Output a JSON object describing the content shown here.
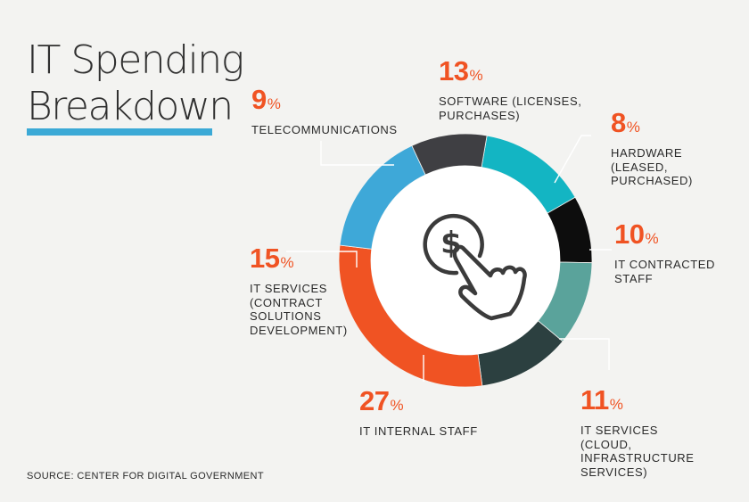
{
  "header": {
    "title_line1": "IT Spending",
    "title_line2": "Breakdown",
    "accent_color": "#3ba9d6"
  },
  "source": "SOURCE: CENTER FOR DIGITAL GOVERNMENT",
  "percent_symbol": "%",
  "center_icon": "hand-pointing-dollar-coin-icon",
  "chart_data": {
    "type": "pie",
    "variant": "donut",
    "title": "IT Spending Breakdown",
    "categories": [
      "SOFTWARE (LICENSES, PURCHASES)",
      "HARDWARE (LEASED, PURCHASED)",
      "IT CONTRACTED STAFF",
      "IT SERVICES (CLOUD, INFRASTRUCTURE SERVICES)",
      "IT INTERNAL STAFF",
      "IT SERVICES (CONTRACT SOLUTIONS DEVELOPMENT)",
      "TELECOMMUNICATIONS"
    ],
    "values": [
      13,
      8,
      10,
      11,
      27,
      15,
      9
    ],
    "colors": [
      "#13b5c3",
      "#0d0d0d",
      "#5aa39b",
      "#2c4040",
      "#f05323",
      "#3ea8d8",
      "#3f3f43"
    ],
    "unit": "%",
    "slices": [
      {
        "value": "13",
        "label": "SOFTWARE (LICENSES,\nPURCHASES)",
        "color": "#13b5c3"
      },
      {
        "value": "8",
        "label": "HARDWARE\n(LEASED,\nPURCHASED)",
        "color": "#0d0d0d"
      },
      {
        "value": "10",
        "label": "IT CONTRACTED\nSTAFF",
        "color": "#5aa39b"
      },
      {
        "value": "11",
        "label": "IT SERVICES\n(CLOUD,\nINFRASTRUCTURE\nSERVICES)",
        "color": "#2c4040"
      },
      {
        "value": "27",
        "label": "IT INTERNAL STAFF",
        "color": "#f05323"
      },
      {
        "value": "15",
        "label": "IT SERVICES\n(CONTRACT\nSOLUTIONS\nDEVELOPMENT)",
        "color": "#3ea8d8"
      },
      {
        "value": "9",
        "label": "TELECOMMUNICATIONS",
        "color": "#3f3f43"
      }
    ]
  }
}
